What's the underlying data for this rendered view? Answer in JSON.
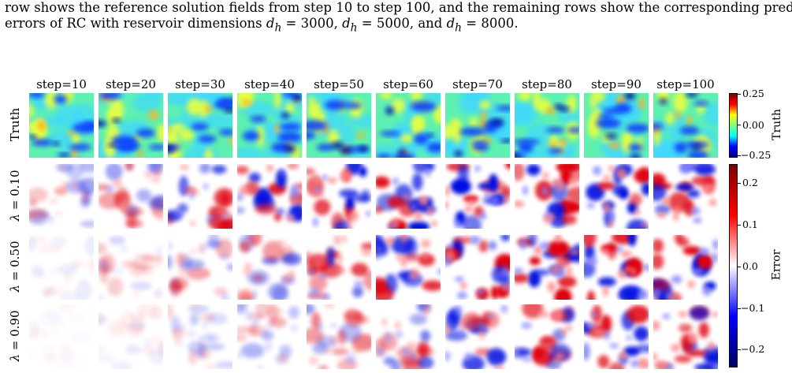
{
  "caption": {
    "line1": "row shows the reference solution fields from step 10 to step 100, and the remaining rows show the corresponding prediction",
    "line2": "errors of RC with reservoir dimensions d_h = 3000, d_h = 5000, and d_h = 8000."
  },
  "figure": {
    "column_titles": [
      "step=10",
      "step=20",
      "step=30",
      "step=40",
      "step=50",
      "step=60",
      "step=70",
      "step=80",
      "step=90",
      "step=100"
    ],
    "row_labels": [
      "Truth",
      "λ = 0.10",
      "λ = 0.50",
      "λ = 0.90"
    ],
    "truth_colorbar": {
      "label": "Truth",
      "ticks": [
        "0.25",
        "0.00",
        "−0.25"
      ],
      "colormap": "jet",
      "range": [
        -0.25,
        0.25
      ]
    },
    "error_colorbar": {
      "label": "Error",
      "ticks": [
        "0.2",
        "0.1",
        "0.0",
        "−0.1",
        "−0.2"
      ],
      "colormap": "seismic",
      "range": [
        -0.25,
        0.25
      ]
    },
    "error_intensity": {
      "lambda_0.10": [
        0.35,
        0.55,
        0.7,
        0.85,
        0.95,
        1.0,
        1.0,
        1.0,
        1.0,
        1.0
      ],
      "lambda_0.50": [
        0.08,
        0.2,
        0.35,
        0.5,
        0.7,
        0.85,
        0.95,
        1.0,
        1.0,
        1.0
      ],
      "lambda_0.90": [
        0.03,
        0.1,
        0.2,
        0.3,
        0.45,
        0.6,
        0.75,
        0.85,
        0.9,
        0.95
      ]
    }
  }
}
